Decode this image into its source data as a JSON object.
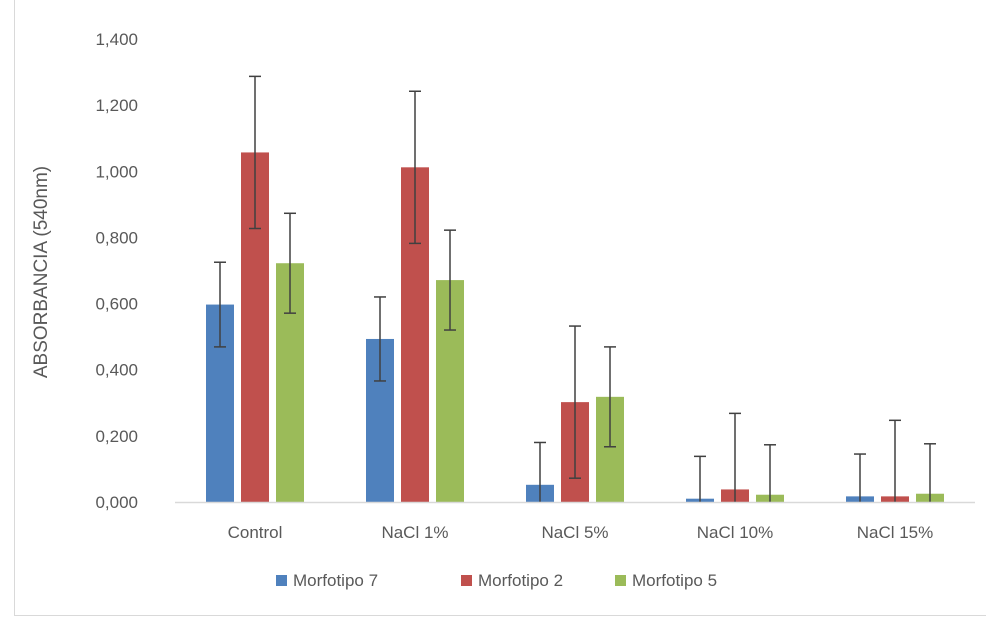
{
  "chart_data": {
    "type": "bar",
    "title": "",
    "xlabel": "",
    "ylabel": "ABSORBANCIA (540nm)",
    "ylim": [
      0,
      1.4
    ],
    "yticks": [
      "0,000",
      "0,200",
      "0,400",
      "0,600",
      "0,800",
      "1,000",
      "1,200",
      "1,400"
    ],
    "ytick_values": [
      0,
      0.2,
      0.4,
      0.6,
      0.8,
      1.0,
      1.2,
      1.4
    ],
    "categories": [
      "Control",
      "NaCl 1%",
      "NaCl 5%",
      "NaCl 10%",
      "NaCl 15%"
    ],
    "grid": false,
    "legend_position": "bottom",
    "series": [
      {
        "name": "Morfotipo 7",
        "color": "#4f81bd",
        "values": [
          0.597,
          0.493,
          0.052,
          0.01,
          0.017
        ],
        "errors": [
          0.128,
          0.127,
          0.128,
          0.128,
          0.128
        ]
      },
      {
        "name": "Morfotipo 2",
        "color": "#c0504d",
        "values": [
          1.057,
          1.012,
          0.302,
          0.038,
          0.017
        ],
        "errors": [
          0.23,
          0.23,
          0.23,
          0.23,
          0.23
        ]
      },
      {
        "name": "Morfotipo 5",
        "color": "#9bbb59",
        "values": [
          0.722,
          0.671,
          0.318,
          0.022,
          0.025
        ],
        "errors": [
          0.151,
          0.151,
          0.151,
          0.151,
          0.151
        ]
      }
    ]
  }
}
